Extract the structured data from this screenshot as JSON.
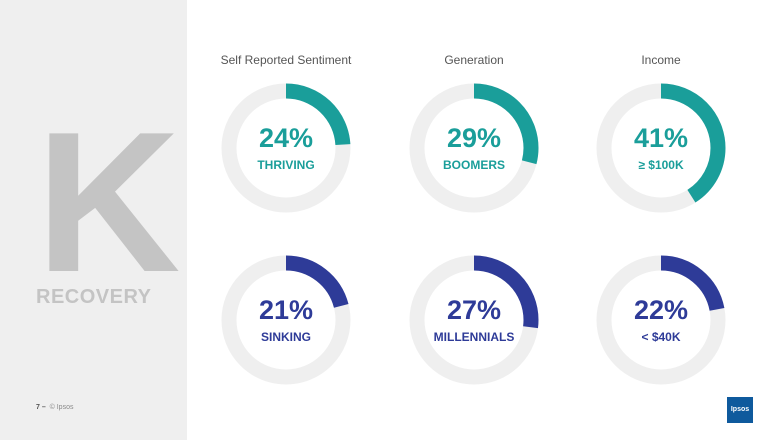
{
  "slide": {
    "big_letter": "K",
    "subtitle": "RECOVERY",
    "page_number": "7 –",
    "copyright": "© Ipsos",
    "logo_text": "Ipsos"
  },
  "columns": [
    {
      "heading": "Self Reported Sentiment"
    },
    {
      "heading": "Generation"
    },
    {
      "heading": "Income"
    }
  ],
  "colors": {
    "track": "#efefef",
    "teal": "#1a9e9a",
    "blue": "#2e3b98"
  },
  "chart_data": [
    {
      "type": "pie",
      "title": "Self Reported Sentiment",
      "value": 24,
      "label": "THRIVING",
      "display": "24%",
      "color": "#1a9e9a"
    },
    {
      "type": "pie",
      "title": "Generation",
      "value": 29,
      "label": "BOOMERS",
      "display": "29%",
      "color": "#1a9e9a"
    },
    {
      "type": "pie",
      "title": "Income",
      "value": 41,
      "label": "≥ $100K",
      "display": "41%",
      "color": "#1a9e9a"
    },
    {
      "type": "pie",
      "title": "Self Reported Sentiment",
      "value": 21,
      "label": "SINKING",
      "display": "21%",
      "color": "#2e3b98"
    },
    {
      "type": "pie",
      "title": "Generation",
      "value": 27,
      "label": "MILLENNIALS",
      "display": "27%",
      "color": "#2e3b98"
    },
    {
      "type": "pie",
      "title": "Income",
      "value": 22,
      "label": "< $40K",
      "display": "22%",
      "color": "#2e3b98"
    }
  ]
}
